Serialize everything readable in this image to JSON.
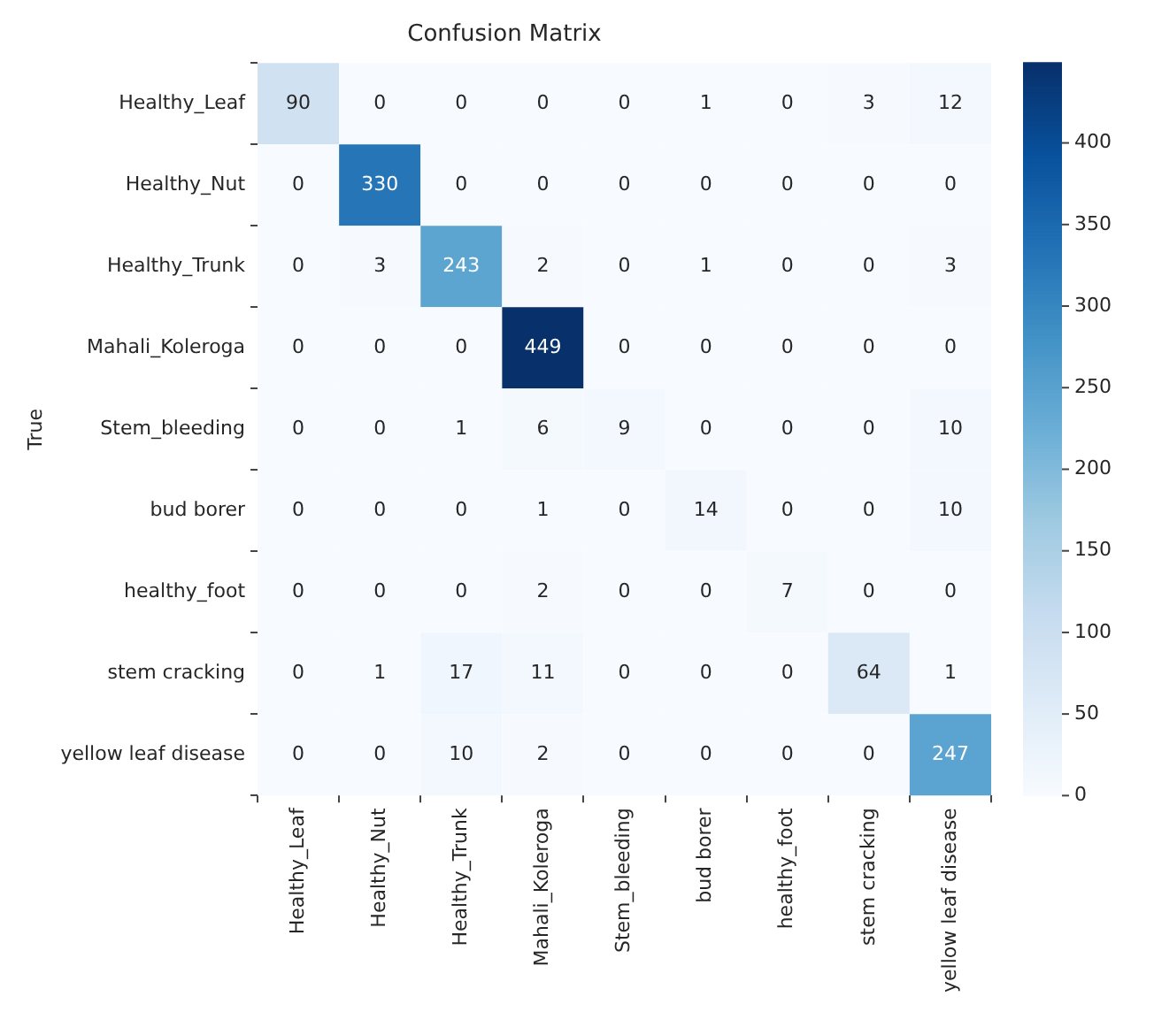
{
  "chart_data": {
    "type": "heatmap",
    "title": "Confusion Matrix",
    "ylabel": "True",
    "categories": [
      "Healthy_Leaf",
      "Healthy_Nut",
      "Healthy_Trunk",
      "Mahali_Koleroga",
      "Stem_bleeding",
      "bud borer",
      "healthy_foot",
      "stem cracking",
      "yellow leaf disease"
    ],
    "y_categories": [
      "Healthy_Leaf",
      "Healthy_Nut",
      "Healthy_Trunk",
      "Mahali_Koleroga",
      "Stem_bleeding",
      "bud borer",
      "healthy_foot",
      "stem cracking",
      "yellow leaf disease"
    ],
    "cells": [
      [
        90,
        0,
        0,
        0,
        0,
        1,
        0,
        3,
        12
      ],
      [
        0,
        330,
        0,
        0,
        0,
        0,
        0,
        0,
        0
      ],
      [
        0,
        3,
        243,
        2,
        0,
        1,
        0,
        0,
        3
      ],
      [
        0,
        0,
        0,
        449,
        0,
        0,
        0,
        0,
        0
      ],
      [
        0,
        0,
        1,
        6,
        9,
        0,
        0,
        0,
        10
      ],
      [
        0,
        0,
        0,
        1,
        0,
        14,
        0,
        0,
        10
      ],
      [
        0,
        0,
        0,
        2,
        0,
        0,
        7,
        0,
        0
      ],
      [
        0,
        1,
        17,
        11,
        0,
        0,
        0,
        64,
        1
      ],
      [
        0,
        0,
        10,
        2,
        0,
        0,
        0,
        0,
        247
      ]
    ],
    "clim": [
      0,
      449
    ],
    "cticks": [
      0,
      50,
      100,
      150,
      200,
      250,
      300,
      350,
      400
    ],
    "data_labels": true,
    "grid": false
  }
}
